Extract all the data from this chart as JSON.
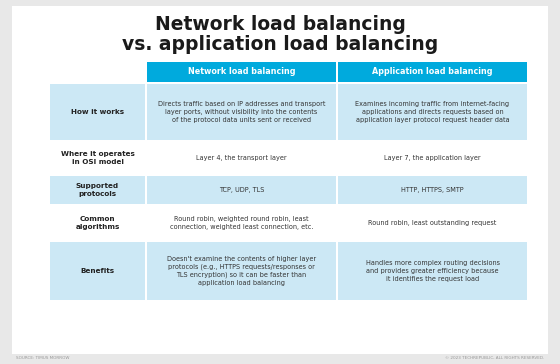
{
  "title_line1": "Network load balancing",
  "title_line2": "vs. application load balancing",
  "title_fontsize": 13.5,
  "background_color": "#e8e8e8",
  "card_color": "#ffffff",
  "header_color": "#00aadd",
  "header_text_color": "#ffffff",
  "row_label_bg_even": "#cce8f5",
  "row_label_bg_odd": "#ffffff",
  "row_bg_even": "#cce8f5",
  "row_bg_odd": "#ffffff",
  "col1_header": "Network load balancing",
  "col2_header": "Application load balancing",
  "row_labels": [
    "How it works",
    "Where it operates\nin OSI model",
    "Supported\nprotocols",
    "Common\nalgorithms",
    "Benefits"
  ],
  "col1_data": [
    "Directs traffic based on IP addresses and transport\nlayer ports, without visibility into the contents\nof the protocol data units sent or received",
    "Layer 4, the transport layer",
    "TCP, UDP, TLS",
    "Round robin, weighted round robin, least\nconnection, weighted least connection, etc.",
    "Doesn't examine the contents of higher layer\nprotocols (e.g., HTTPS requests/responses or\nTLS encryption) so it can be faster than\napplication load balancing"
  ],
  "col2_data": [
    "Examines incoming traffic from internet-facing\napplications and directs requests based on\napplication layer protocol request header data",
    "Layer 7, the application layer",
    "HTTP, HTTPS, SMTP",
    "Round robin, least outstanding request",
    "Handles more complex routing decisions\nand provides greater efficiency because\nit identifies the request load"
  ],
  "footer_left": "SOURCE: TIMUS MORROW",
  "footer_right": "© 2023 TECHREPUBLIC, ALL RIGHTS RESERVED."
}
